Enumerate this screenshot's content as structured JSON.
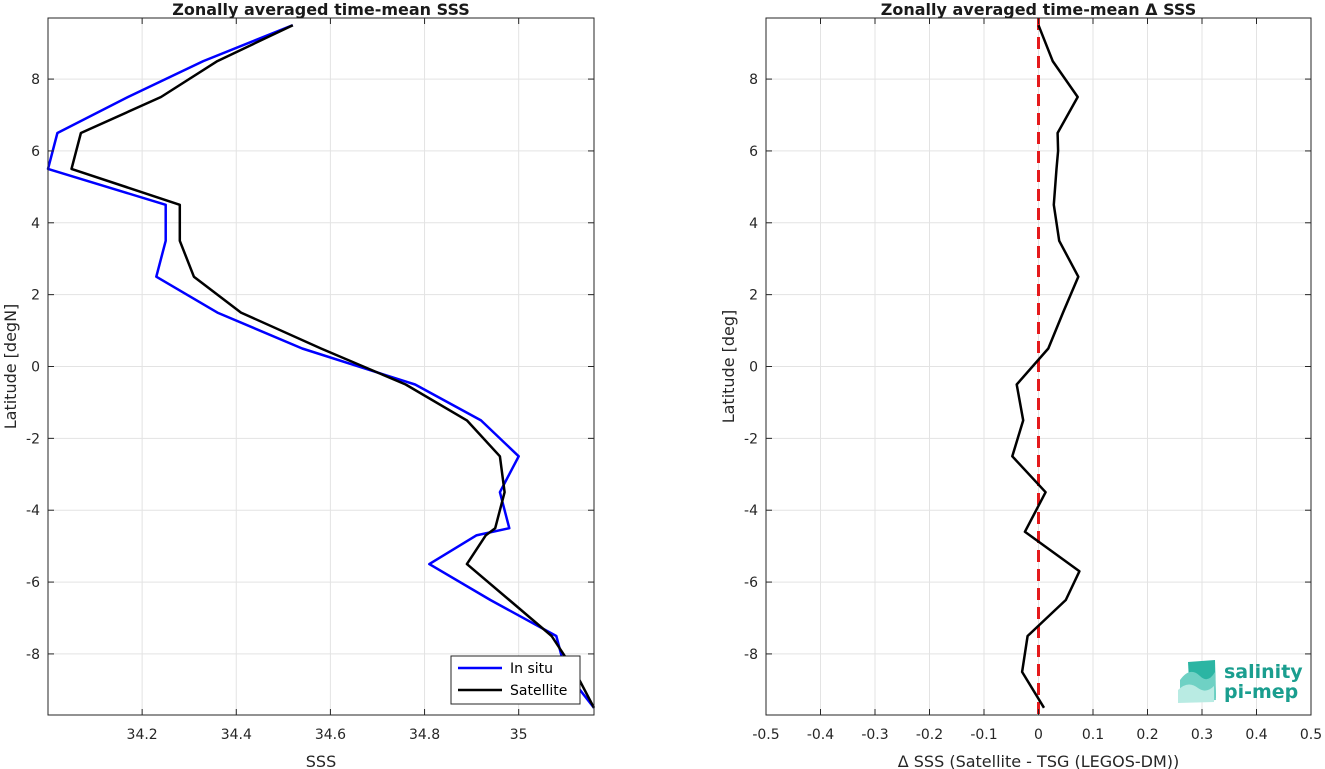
{
  "chart_data": [
    {
      "type": "line",
      "title": "Zonally averaged time-mean SSS",
      "xlabel": "SSS",
      "ylabel": "Latitude [degN]",
      "xlim": [
        34.0,
        35.16
      ],
      "ylim": [
        -9.7,
        9.7
      ],
      "xticks": [
        34.2,
        34.4,
        34.6,
        34.8,
        35.0
      ],
      "xtick_labels": [
        "34.2",
        "34.4",
        "34.6",
        "34.8",
        "35"
      ],
      "yticks": [
        -8,
        -6,
        -4,
        -2,
        0,
        2,
        4,
        6,
        8
      ],
      "ytick_labels": [
        "-8",
        "-6",
        "-4",
        "-2",
        "0",
        "2",
        "4",
        "6",
        "8"
      ],
      "grid": true,
      "legend_position": "bottom-right",
      "series": [
        {
          "name": "In situ",
          "color": "#0000ff",
          "x": [
            35.16,
            35.1,
            35.08,
            34.94,
            34.81,
            34.91,
            34.98,
            34.96,
            35.0,
            34.92,
            34.78,
            34.54,
            34.36,
            34.23,
            34.25,
            34.25,
            34.0,
            34.02,
            34.17,
            34.33,
            34.52
          ],
          "y": [
            -9.5,
            -8.5,
            -7.5,
            -6.5,
            -5.5,
            -4.7,
            -4.5,
            -3.5,
            -2.5,
            -1.5,
            -0.5,
            0.5,
            1.5,
            2.5,
            3.5,
            4.5,
            5.5,
            6.5,
            7.5,
            8.5,
            9.5
          ]
        },
        {
          "name": "Satellite",
          "color": "#000000",
          "x": [
            35.16,
            35.12,
            35.07,
            34.98,
            34.89,
            34.93,
            34.95,
            34.97,
            34.96,
            34.89,
            34.76,
            34.58,
            34.41,
            34.31,
            34.28,
            34.28,
            34.05,
            34.07,
            34.24,
            34.36,
            34.52
          ],
          "y": [
            -9.5,
            -8.5,
            -7.5,
            -6.5,
            -5.5,
            -4.7,
            -4.5,
            -3.5,
            -2.5,
            -1.5,
            -0.5,
            0.5,
            1.5,
            2.5,
            3.5,
            4.5,
            5.5,
            6.5,
            7.5,
            8.5,
            9.5
          ]
        }
      ]
    },
    {
      "type": "line",
      "title": "Zonally averaged time-mean Δ SSS",
      "xlabel": "Δ SSS (Satellite - TSG (LEGOS-DM))",
      "ylabel": "Latitude [deg]",
      "xlim": [
        -0.5,
        0.5
      ],
      "ylim": [
        -9.7,
        9.7
      ],
      "xticks": [
        -0.5,
        -0.4,
        -0.3,
        -0.2,
        -0.1,
        0,
        0.1,
        0.2,
        0.3,
        0.4,
        0.5
      ],
      "xtick_labels": [
        "-0.5",
        "-0.4",
        "-0.3",
        "-0.2",
        "-0.1",
        "0",
        "0.1",
        "0.2",
        "0.3",
        "0.4",
        "0.5"
      ],
      "yticks": [
        -8,
        -6,
        -4,
        -2,
        0,
        2,
        4,
        6,
        8
      ],
      "ytick_labels": [
        "-8",
        "-6",
        "-4",
        "-2",
        "0",
        "2",
        "4",
        "6",
        "8"
      ],
      "grid": true,
      "reference_line": {
        "x": 0,
        "color": "#e41a1c",
        "style": "dashed"
      },
      "series": [
        {
          "color": "#000000",
          "x": [
            0.01,
            -0.03,
            -0.02,
            0.05,
            0.075,
            -0.025,
            0.013,
            -0.048,
            -0.028,
            -0.04,
            0.018,
            0.045,
            0.073,
            0.038,
            0.028,
            0.033,
            0.036,
            0.035,
            0.072,
            0.026,
            0.0
          ],
          "y": [
            -9.5,
            -8.5,
            -7.5,
            -6.5,
            -5.7,
            -4.6,
            -3.5,
            -2.5,
            -1.5,
            -0.5,
            0.5,
            1.5,
            2.5,
            3.5,
            4.5,
            5.5,
            6.0,
            6.5,
            7.5,
            8.5,
            9.5
          ]
        }
      ]
    }
  ],
  "logo": {
    "line1": "salinity",
    "line2": "pi-mep",
    "color": "#1a9e8f"
  }
}
